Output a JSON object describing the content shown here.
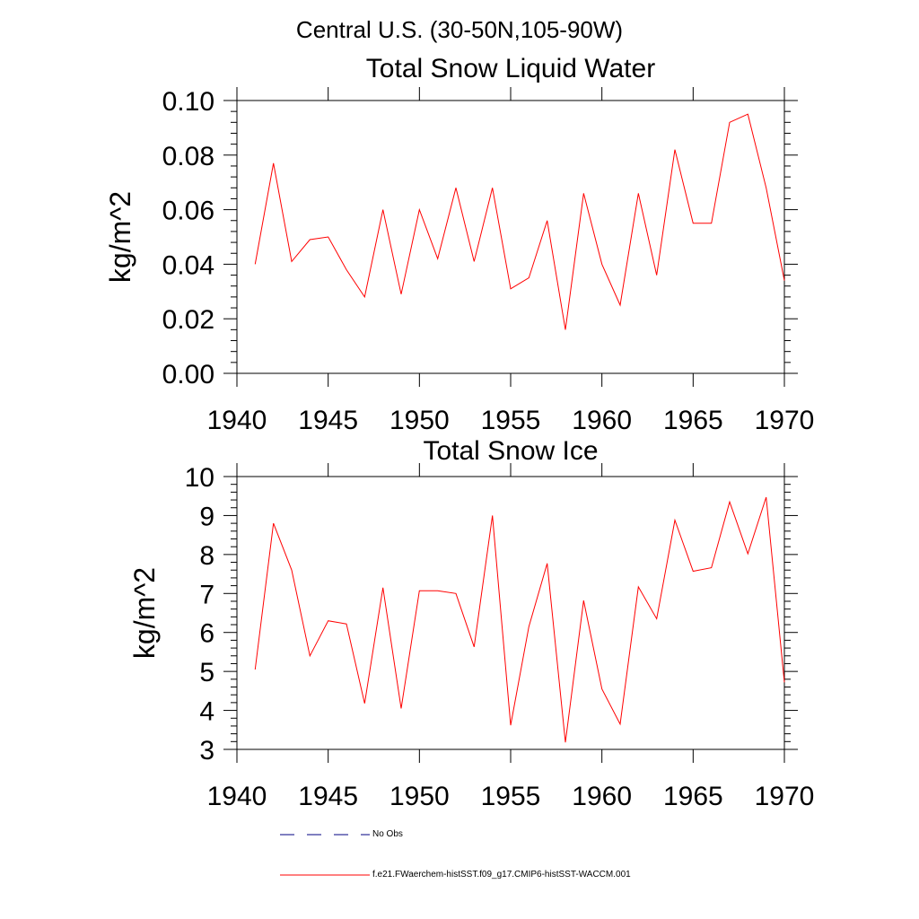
{
  "page": {
    "title": "Central U.S. (30-50N,105-90W)"
  },
  "legend": {
    "items": [
      {
        "label": "No Obs",
        "color": "#000080",
        "style": "dashed"
      },
      {
        "label": "f.e21.FWaerchem-histSST.f09_g17.CMIP6-histSST-WACCM.001",
        "color": "#ff0000",
        "style": "solid"
      }
    ]
  },
  "chart_data": [
    {
      "type": "line",
      "title": "Total Snow Liquid Water",
      "xlabel": "",
      "ylabel": "kg/m^2",
      "xlim": [
        1940,
        1970
      ],
      "ylim": [
        0.0,
        0.1
      ],
      "x_ticks": [
        "1940",
        "1945",
        "1950",
        "1955",
        "1960",
        "1965",
        "1970"
      ],
      "y_ticks": [
        "0.00",
        "0.02",
        "0.04",
        "0.06",
        "0.08",
        "0.10"
      ],
      "y_tick_values": [
        0.0,
        0.02,
        0.04,
        0.06,
        0.08,
        0.1
      ],
      "grid": false,
      "series": [
        {
          "color": "#ff0000",
          "x": [
            1941,
            1942,
            1943,
            1944,
            1945,
            1946,
            1947,
            1948,
            1949,
            1950,
            1951,
            1952,
            1953,
            1954,
            1955,
            1956,
            1957,
            1958,
            1959,
            1960,
            1961,
            1962,
            1963,
            1964,
            1965,
            1966,
            1967,
            1968,
            1969,
            1970
          ],
          "values": [
            0.04,
            0.077,
            0.041,
            0.049,
            0.05,
            0.038,
            0.028,
            0.06,
            0.029,
            0.06,
            0.042,
            0.068,
            0.041,
            0.068,
            0.031,
            0.035,
            0.056,
            0.016,
            0.066,
            0.04,
            0.025,
            0.066,
            0.036,
            0.082,
            0.055,
            0.055,
            0.092,
            0.095,
            0.068,
            0.034
          ]
        }
      ]
    },
    {
      "type": "line",
      "title": "Total Snow Ice",
      "xlabel": "",
      "ylabel": "kg/m^2",
      "xlim": [
        1940,
        1970
      ],
      "ylim": [
        3,
        10
      ],
      "x_ticks": [
        "1940",
        "1945",
        "1950",
        "1955",
        "1960",
        "1965",
        "1970"
      ],
      "y_ticks": [
        "3",
        "4",
        "5",
        "6",
        "7",
        "8",
        "9",
        "10"
      ],
      "y_tick_values": [
        3,
        4,
        5,
        6,
        7,
        8,
        9,
        10
      ],
      "grid": false,
      "series": [
        {
          "color": "#ff0000",
          "x": [
            1941,
            1942,
            1943,
            1944,
            1945,
            1946,
            1947,
            1948,
            1949,
            1950,
            1951,
            1952,
            1953,
            1954,
            1955,
            1956,
            1957,
            1958,
            1959,
            1960,
            1961,
            1962,
            1963,
            1964,
            1965,
            1966,
            1967,
            1968,
            1969,
            1970
          ],
          "values": [
            5.05,
            8.8,
            7.6,
            5.4,
            6.3,
            6.22,
            4.18,
            7.15,
            4.05,
            7.07,
            7.07,
            7.0,
            5.63,
            9.0,
            3.62,
            6.15,
            7.77,
            3.18,
            6.82,
            4.55,
            3.65,
            7.17,
            6.35,
            8.88,
            7.57,
            7.66,
            9.35,
            8.02,
            9.47,
            4.72
          ]
        }
      ]
    }
  ]
}
